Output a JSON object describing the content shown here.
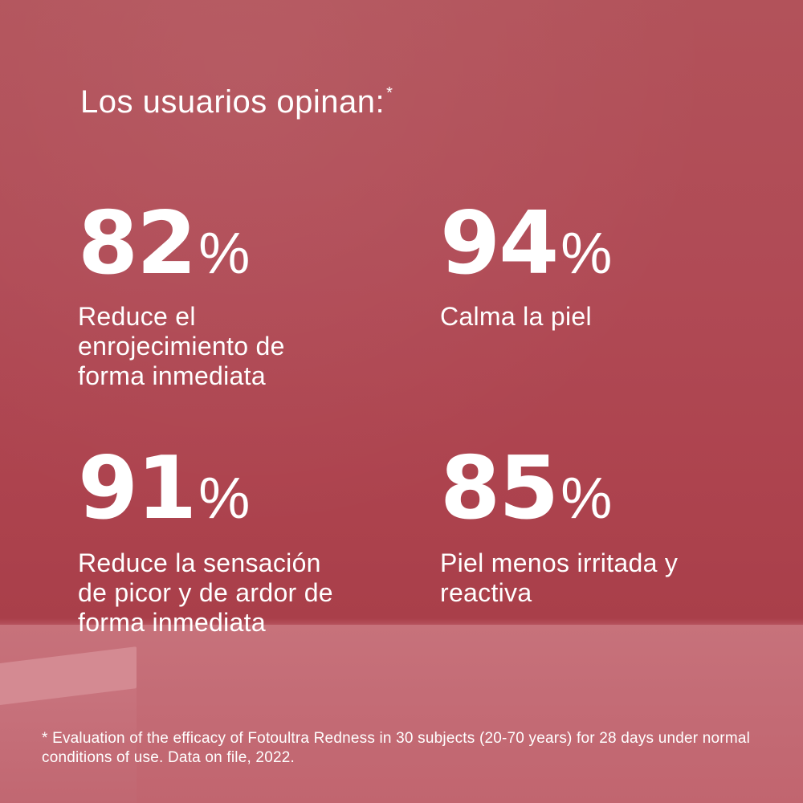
{
  "header": {
    "title": "Los usuarios opinan:",
    "title_marker": "*"
  },
  "stats": [
    {
      "value": "82",
      "unit": "%",
      "label": "Reduce el enrojecimiento de forma inmediata"
    },
    {
      "value": "94",
      "unit": "%",
      "label": "Calma la piel"
    },
    {
      "value": "91",
      "unit": "%",
      "label": "Reduce la sensación de picor y de ardor de forma inmediata"
    },
    {
      "value": "85",
      "unit": "%",
      "label": "Piel menos irritada y reactiva"
    }
  ],
  "footnote": "* Evaluation of the efficacy of Fotoultra Redness in 30 subjects (20-70 years) for 28 days under normal conditions of use. Data on file, 2022.",
  "colors": {
    "background": "#b04a55",
    "text": "#ffffff"
  }
}
